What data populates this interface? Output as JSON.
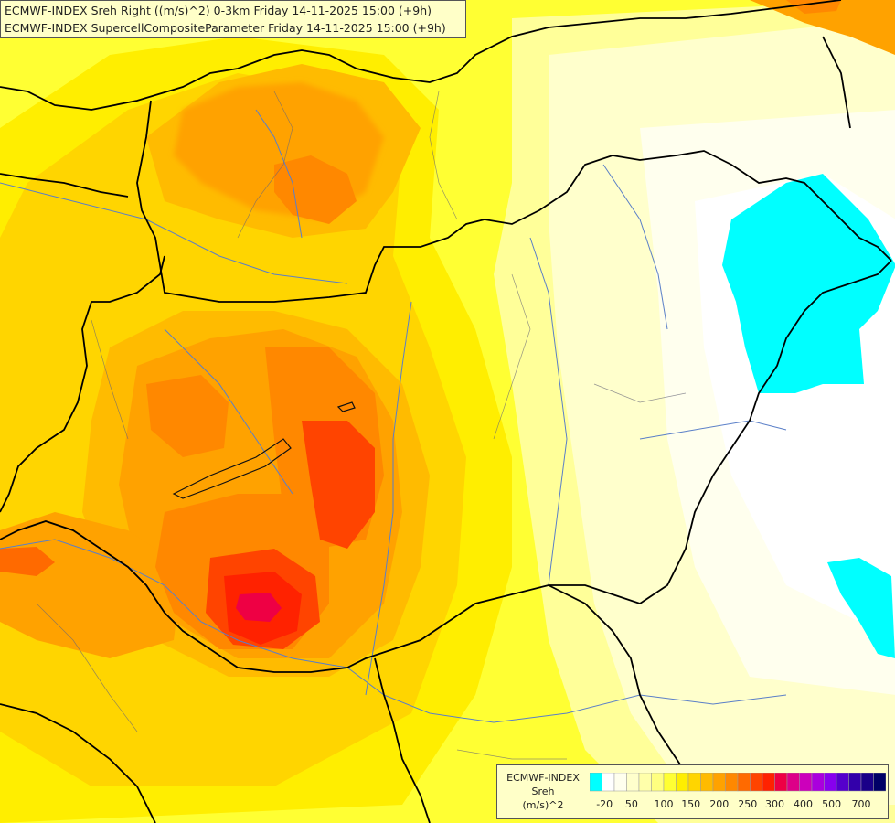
{
  "header": {
    "line1": "ECMWF-INDEX Sreh Right ((m/s)^2) 0-3km Friday 14-11-2025 15:00 (+9h)",
    "line2": "ECMWF-INDEX SupercellCompositeParameter Friday 14-11-2025 15:00 (+9h)"
  },
  "legend": {
    "title1": "ECMWF-INDEX",
    "title2": "Sreh",
    "title3": "(m/s)^2",
    "colors": [
      "#00ffff",
      "#ffffff",
      "#ffffee",
      "#ffffcc",
      "#ffffaa",
      "#ffff80",
      "#ffff33",
      "#ffee00",
      "#ffd500",
      "#ffbb00",
      "#ffa200",
      "#ff8800",
      "#ff6a00",
      "#ff4400",
      "#ff2200",
      "#ee0044",
      "#dd0088",
      "#cc00bb",
      "#aa00dd",
      "#8800ee",
      "#5500cc",
      "#3300aa",
      "#1a0088",
      "#000066"
    ],
    "labels": [
      "-20",
      "50",
      "100",
      "150",
      "200",
      "250",
      "300",
      "400",
      "500",
      "700"
    ]
  }
}
